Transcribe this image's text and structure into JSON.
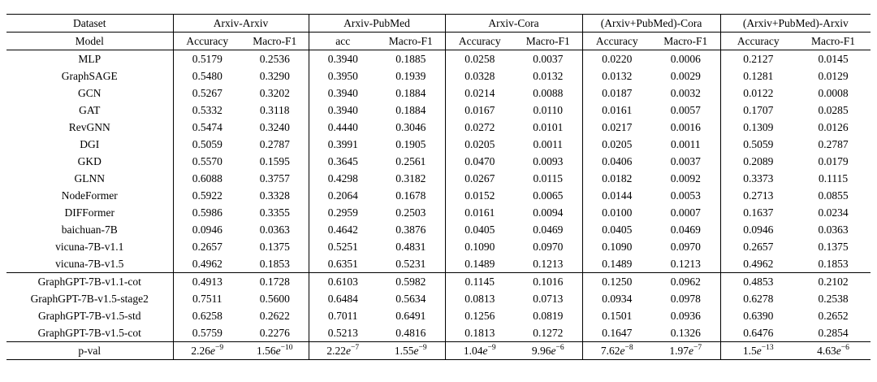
{
  "table": {
    "col_groups": [
      {
        "label": "Dataset",
        "sub": [
          "Model"
        ]
      },
      {
        "label": "Arxiv-Arxiv",
        "sub": [
          "Accuracy",
          "Macro-F1"
        ]
      },
      {
        "label": "Arxiv-PubMed",
        "sub": [
          "acc",
          "Macro-F1"
        ]
      },
      {
        "label": "Arxiv-Cora",
        "sub": [
          "Accuracy",
          "Macro-F1"
        ]
      },
      {
        "label": "(Arxiv+PubMed)-Cora",
        "sub": [
          "Accuracy",
          "Macro-F1"
        ]
      },
      {
        "label": "(Arxiv+PubMed)-Arxiv",
        "sub": [
          "Accuracy",
          "Macro-F1"
        ]
      }
    ],
    "rows": [
      {
        "model": "MLP",
        "bold_model": false,
        "bold_values": [],
        "values": [
          "0.5179",
          "0.2536",
          "0.3940",
          "0.1885",
          "0.0258",
          "0.0037",
          "0.0220",
          "0.0006",
          "0.2127",
          "0.0145"
        ]
      },
      {
        "model": "GraphSAGE",
        "bold_model": false,
        "bold_values": [],
        "values": [
          "0.5480",
          "0.3290",
          "0.3950",
          "0.1939",
          "0.0328",
          "0.0132",
          "0.0132",
          "0.0029",
          "0.1281",
          "0.0129"
        ]
      },
      {
        "model": "GCN",
        "bold_model": false,
        "bold_values": [],
        "values": [
          "0.5267",
          "0.3202",
          "0.3940",
          "0.1884",
          "0.0214",
          "0.0088",
          "0.0187",
          "0.0032",
          "0.0122",
          "0.0008"
        ]
      },
      {
        "model": "GAT",
        "bold_model": false,
        "bold_values": [],
        "values": [
          "0.5332",
          "0.3118",
          "0.3940",
          "0.1884",
          "0.0167",
          "0.0110",
          "0.0161",
          "0.0057",
          "0.1707",
          "0.0285"
        ]
      },
      {
        "model": "RevGNN",
        "bold_model": false,
        "bold_values": [],
        "values": [
          "0.5474",
          "0.3240",
          "0.4440",
          "0.3046",
          "0.0272",
          "0.0101",
          "0.0217",
          "0.0016",
          "0.1309",
          "0.0126"
        ]
      },
      {
        "model": "DGI",
        "bold_model": false,
        "bold_values": [],
        "values": [
          "0.5059",
          "0.2787",
          "0.3991",
          "0.1905",
          "0.0205",
          "0.0011",
          "0.0205",
          "0.0011",
          "0.5059",
          "0.2787"
        ]
      },
      {
        "model": "GKD",
        "bold_model": false,
        "bold_values": [],
        "values": [
          "0.5570",
          "0.1595",
          "0.3645",
          "0.2561",
          "0.0470",
          "0.0093",
          "0.0406",
          "0.0037",
          "0.2089",
          "0.0179"
        ]
      },
      {
        "model": "GLNN",
        "bold_model": false,
        "bold_values": [],
        "values": [
          "0.6088",
          "0.3757",
          "0.4298",
          "0.3182",
          "0.0267",
          "0.0115",
          "0.0182",
          "0.0092",
          "0.3373",
          "0.1115"
        ]
      },
      {
        "model": "NodeFormer",
        "bold_model": false,
        "bold_values": [],
        "values": [
          "0.5922",
          "0.3328",
          "0.2064",
          "0.1678",
          "0.0152",
          "0.0065",
          "0.0144",
          "0.0053",
          "0.2713",
          "0.0855"
        ]
      },
      {
        "model": "DIFFormer",
        "bold_model": false,
        "bold_values": [],
        "values": [
          "0.5986",
          "0.3355",
          "0.2959",
          "0.2503",
          "0.0161",
          "0.0094",
          "0.0100",
          "0.0007",
          "0.1637",
          "0.0234"
        ]
      },
      {
        "model": "baichuan-7B",
        "bold_model": false,
        "bold_values": [],
        "values": [
          "0.0946",
          "0.0363",
          "0.4642",
          "0.3876",
          "0.0405",
          "0.0469",
          "0.0405",
          "0.0469",
          "0.0946",
          "0.0363"
        ]
      },
      {
        "model": "vicuna-7B-v1.1",
        "bold_model": false,
        "bold_values": [],
        "values": [
          "0.2657",
          "0.1375",
          "0.5251",
          "0.4831",
          "0.1090",
          "0.0970",
          "0.1090",
          "0.0970",
          "0.2657",
          "0.1375"
        ]
      },
      {
        "model": "vicuna-7B-v1.5",
        "bold_model": false,
        "bold_values": [],
        "values": [
          "0.4962",
          "0.1853",
          "0.6351",
          "0.5231",
          "0.1489",
          "0.1213",
          "0.1489",
          "0.1213",
          "0.4962",
          "0.1853"
        ]
      },
      {
        "model": "GraphGPT-7B-v1.1-cot",
        "bold_model": true,
        "bold_values": [],
        "values": [
          "0.4913",
          "0.1728",
          "0.6103",
          "0.5982",
          "0.1145",
          "0.1016",
          "0.1250",
          "0.0962",
          "0.4853",
          "0.2102"
        ],
        "separator_above": true
      },
      {
        "model": "GraphGPT-7B-v1.5-stage2",
        "bold_model": true,
        "bold_values": [
          0,
          1
        ],
        "values": [
          "0.7511",
          "0.5600",
          "0.6484",
          "0.5634",
          "0.0813",
          "0.0713",
          "0.0934",
          "0.0978",
          "0.6278",
          "0.2538"
        ]
      },
      {
        "model": "GraphGPT-7B-v1.5-std",
        "bold_model": true,
        "bold_values": [
          2,
          3
        ],
        "values": [
          "0.6258",
          "0.2622",
          "0.7011",
          "0.6491",
          "0.1256",
          "0.0819",
          "0.1501",
          "0.0936",
          "0.6390",
          "0.2652"
        ]
      },
      {
        "model": "GraphGPT-7B-v1.5-cot",
        "bold_model": true,
        "bold_values": [
          4,
          5,
          6,
          7,
          8,
          9
        ],
        "values": [
          "0.5759",
          "0.2276",
          "0.5213",
          "0.4816",
          "0.1813",
          "0.1272",
          "0.1647",
          "0.1326",
          "0.6476",
          "0.2854"
        ]
      }
    ],
    "pval_row": {
      "label": "p-val",
      "values": [
        {
          "m": "2.26",
          "x": "e",
          "exp": "−9"
        },
        {
          "m": "1.56",
          "x": "e",
          "exp": "−10"
        },
        {
          "m": "2.22",
          "x": "e",
          "exp": "−7"
        },
        {
          "m": "1.55",
          "x": "e",
          "exp": "−9"
        },
        {
          "m": "1.04",
          "x": "e",
          "exp": "−9"
        },
        {
          "m": "9.96",
          "x": "e",
          "exp": "−6"
        },
        {
          "m": "7.62",
          "x": "e",
          "exp": "−8"
        },
        {
          "m": "1.97",
          "x": "e",
          "exp": "−7"
        },
        {
          "m": "1.5",
          "x": "e",
          "exp": "−13"
        },
        {
          "m": "4.63",
          "x": "e",
          "exp": "−6"
        }
      ]
    }
  }
}
